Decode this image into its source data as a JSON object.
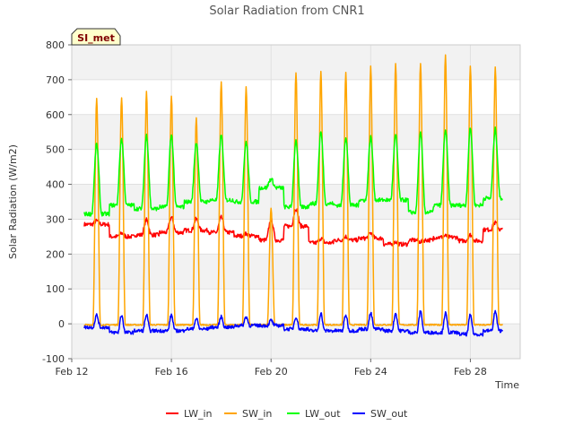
{
  "chart_data": {
    "type": "line",
    "title": "Solar Radiation from CNR1",
    "xlabel": "Time",
    "ylabel": "Solar Radiation (W/m2)",
    "badge": "SI_met",
    "ylim": [
      -100,
      800
    ],
    "yticks": [
      -100,
      0,
      100,
      200,
      300,
      400,
      500,
      600,
      700,
      800
    ],
    "xlim_day": [
      12,
      30
    ],
    "xticks": [
      {
        "day": 12,
        "label": "Feb 12"
      },
      {
        "day": 16,
        "label": "Feb 16"
      },
      {
        "day": 20,
        "label": "Feb 20"
      },
      {
        "day": 24,
        "label": "Feb 24"
      },
      {
        "day": 28,
        "label": "Feb 28"
      }
    ],
    "grid": "alternating horizontal bands",
    "legend_position": "bottom",
    "days": [
      12.5,
      13.5,
      14.5,
      15.5,
      16.5,
      17.5,
      18.5,
      19.5,
      20.5,
      21.5,
      22.5,
      23.5,
      24.5,
      25.5,
      26.5,
      27.5,
      28.5,
      29.5
    ],
    "series": [
      {
        "name": "LW_in",
        "color": "#ff0000",
        "night": [
          285,
          250,
          255,
          262,
          268,
          262,
          252,
          240,
          280,
          232,
          240,
          245,
          228,
          240,
          248,
          238,
          270,
          272
        ],
        "day": [
          295,
          260,
          298,
          305,
          300,
          305,
          258,
          300,
          330,
          245,
          250,
          260,
          235,
          235,
          252,
          255,
          290,
          290
        ]
      },
      {
        "name": "SW_in",
        "color": "#ffa500",
        "night": [
          -3,
          -3,
          -3,
          -3,
          -3,
          -3,
          -3,
          -3,
          -3,
          -3,
          -3,
          -3,
          -3,
          -3,
          -3,
          -3,
          -3,
          -3
        ],
        "day": [
          645,
          650,
          665,
          655,
          590,
          695,
          680,
          330,
          720,
          725,
          720,
          738,
          748,
          748,
          770,
          740,
          735,
          0
        ]
      },
      {
        "name": "LW_out",
        "color": "#00ff00",
        "night": [
          315,
          340,
          330,
          335,
          350,
          355,
          350,
          390,
          335,
          345,
          340,
          355,
          355,
          320,
          340,
          340,
          360,
          368
        ],
        "day": [
          515,
          530,
          540,
          540,
          520,
          540,
          520,
          415,
          525,
          550,
          535,
          535,
          540,
          545,
          555,
          560,
          558,
          368
        ]
      },
      {
        "name": "SW_out",
        "color": "#0000ff",
        "night": [
          -10,
          -25,
          -20,
          -20,
          -15,
          -10,
          -5,
          -5,
          -15,
          -20,
          -20,
          -15,
          -20,
          -25,
          -25,
          -30,
          -20,
          -15
        ],
        "day": [
          25,
          25,
          25,
          25,
          15,
          20,
          20,
          10,
          20,
          30,
          25,
          30,
          30,
          35,
          30,
          25,
          35,
          -15
        ]
      }
    ]
  }
}
